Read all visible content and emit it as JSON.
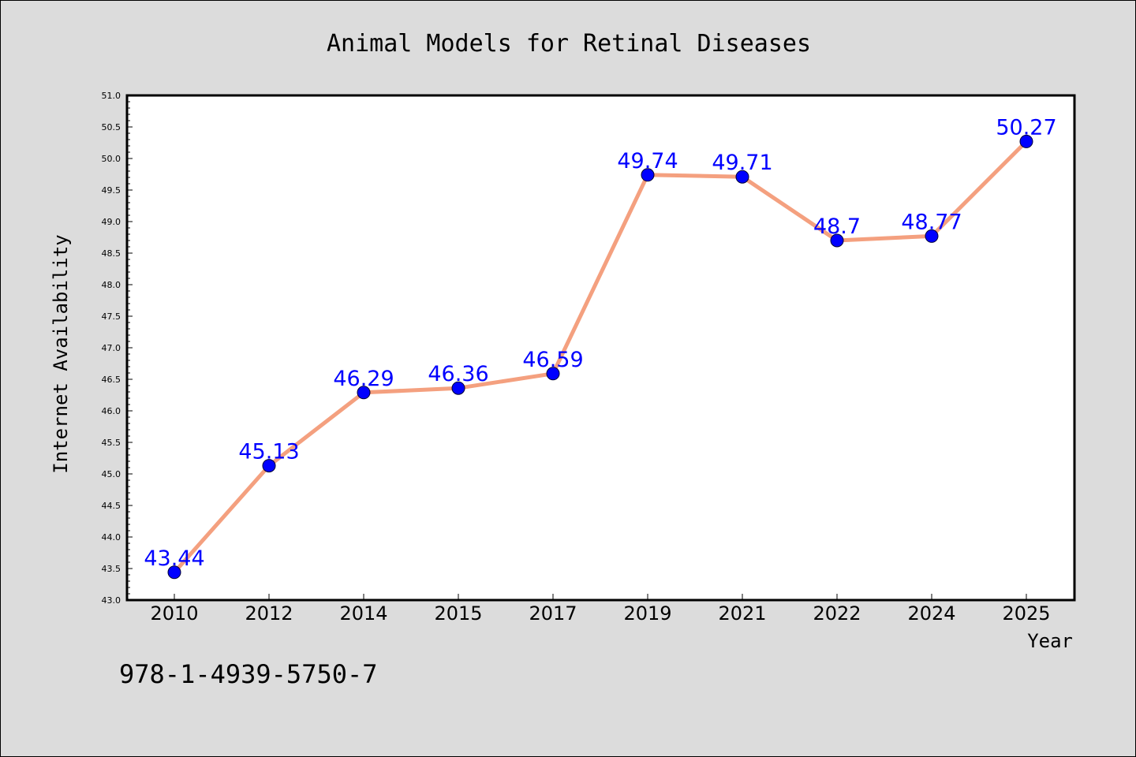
{
  "chart_data": {
    "type": "line",
    "title": "Animal Models for Retinal Diseases",
    "xlabel": "Year",
    "ylabel": "Internet Availability",
    "categories": [
      "2010",
      "2012",
      "2014",
      "2015",
      "2017",
      "2019",
      "2021",
      "2022",
      "2024",
      "2025"
    ],
    "series": [
      {
        "values": [
          43.44,
          45.13,
          46.29,
          46.36,
          46.59,
          49.74,
          49.71,
          48.7,
          48.77,
          50.27
        ],
        "labels": [
          "43.44",
          "45.13",
          "46.29",
          "46.36",
          "46.59",
          "49.74",
          "49.71",
          "48.7",
          "48.77",
          "50.27"
        ],
        "line_color": "#f4a07f",
        "marker_color": "#0000ff"
      }
    ],
    "ylim": [
      43.0,
      51.0
    ],
    "yticks": [
      "43.0",
      "43.5",
      "44.0",
      "44.5",
      "45.0",
      "45.5",
      "46.0",
      "46.5",
      "47.0",
      "47.5",
      "48.0",
      "48.5",
      "49.0",
      "49.5",
      "50.0",
      "50.5",
      "51.0"
    ],
    "grid": false,
    "legend": "none",
    "colors": {
      "background": "#dcdcdc",
      "plot_background": "#ffffff",
      "label_color": "#0000ff"
    }
  },
  "annotation": "978-1-4939-5750-7"
}
